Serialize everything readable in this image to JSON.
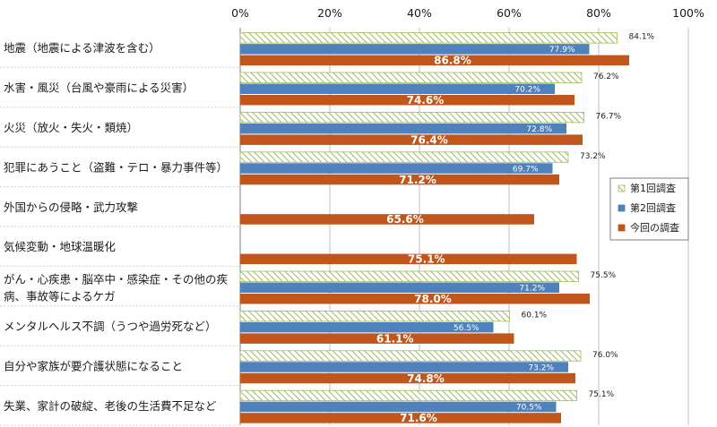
{
  "chart_data": {
    "type": "bar",
    "orientation": "horizontal",
    "xlim": [
      0,
      100
    ],
    "ticks": [
      "0%",
      "20%",
      "40%",
      "60%",
      "80%",
      "100%"
    ],
    "tick_values": [
      0,
      20,
      40,
      60,
      80,
      100
    ],
    "grid": true,
    "legend_position": "right",
    "categories": [
      [
        "地震（地震による津波を含む）"
      ],
      [
        "水害・風災（台風や豪雨による災害）"
      ],
      [
        "火災（放火・失火・類焼）"
      ],
      [
        "犯罪にあうこと（盗難・テロ・暴力事件等）"
      ],
      [
        "外国からの侵略・武力攻撃"
      ],
      [
        "気候変動・地球温暖化"
      ],
      [
        "がん・心疾患・脳卒中・感染症・その他の疾",
        "病、事故等によるケガ"
      ],
      [
        "メンタルヘルス不調（うつや過労死など）"
      ],
      [
        "自分や家族が要介護状態になること"
      ],
      [
        "失業、家計の破綻、老後の生活費不足など"
      ]
    ],
    "series": [
      {
        "name": "第1回調査",
        "color": "#9bbb59",
        "pattern": "hatched",
        "values": [
          84.1,
          76.2,
          76.7,
          73.2,
          null,
          null,
          75.5,
          60.1,
          76.0,
          75.1
        ],
        "labels": [
          "84.1%",
          "76.2%",
          "76.7%",
          "73.2%",
          null,
          null,
          "75.5%",
          "60.1%",
          "76.0%",
          "75.1%"
        ]
      },
      {
        "name": "第2回調査",
        "color": "#4f81bd",
        "values": [
          77.9,
          70.2,
          72.8,
          69.7,
          null,
          null,
          71.2,
          56.5,
          73.2,
          70.5
        ],
        "labels": [
          "77.9%",
          "70.2%",
          "72.8%",
          "69.7%",
          null,
          null,
          "71.2%",
          "56.5%",
          "73.2%",
          "70.5%"
        ]
      },
      {
        "name": "今回の調査",
        "color": "#c0561b",
        "values": [
          86.8,
          74.6,
          76.4,
          71.2,
          65.6,
          75.1,
          78.0,
          61.1,
          74.8,
          71.6
        ],
        "labels": [
          "86.8%",
          "74.6%",
          "76.4%",
          "71.2%",
          "65.6%",
          "75.1%",
          "78.0%",
          "61.1%",
          "74.8%",
          "71.6%"
        ]
      }
    ]
  }
}
